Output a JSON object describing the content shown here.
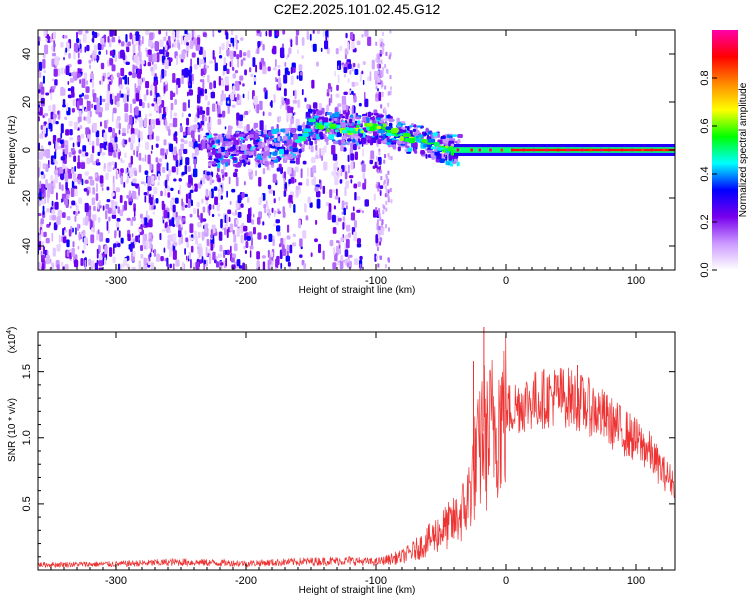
{
  "title": "C2E2.2025.101.02.45.G12",
  "chart_data": [
    {
      "type": "heatmap",
      "xlabel": "Height of straight line (km)",
      "ylabel": "Frequency (Hz)",
      "xlim": [
        -360,
        130
      ],
      "ylim": [
        -50,
        50
      ],
      "xticks": [
        -300,
        -200,
        -100,
        0,
        100
      ],
      "yticks": [
        -40,
        -20,
        0,
        20,
        40
      ],
      "colorbar": {
        "label": "Normalized spectral amplitude",
        "range": [
          0,
          1
        ],
        "ticks": [
          0.0,
          0.2,
          0.4,
          0.6,
          0.8
        ],
        "tick_labels": [
          "0.0",
          "0.2",
          "0.4",
          "0.6",
          "0.8"
        ],
        "colors": [
          "#ffffff",
          "#cc99ff",
          "#7700ee",
          "#0000ff",
          "#00ffff",
          "#00ff00",
          "#ffff00",
          "#ff8800",
          "#ff0000",
          "#ff00aa"
        ]
      },
      "ridge": [
        {
          "x": -220,
          "y": 0
        },
        {
          "x": -160,
          "y": 2
        },
        {
          "x": -150,
          "y": 11
        },
        {
          "x": -120,
          "y": 8
        },
        {
          "x": -100,
          "y": 10
        },
        {
          "x": -80,
          "y": 6
        },
        {
          "x": -60,
          "y": 3
        },
        {
          "x": -45,
          "y": 0
        },
        {
          "x": -20,
          "y": 0
        },
        {
          "x": 0,
          "y": 1
        },
        {
          "x": 130,
          "y": 0
        }
      ]
    },
    {
      "type": "line",
      "xlabel": "Height of straight line (km)",
      "ylabel": "SNR (10 * v/v)",
      "scale_label": "(x10",
      "scale_exponent": "4",
      "xlim": [
        -360,
        130
      ],
      "ylim": [
        0,
        18000
      ],
      "xticks": [
        -300,
        -200,
        -100,
        0,
        100
      ],
      "yticks": [
        5000,
        10000,
        15000
      ],
      "ytick_labels": [
        "0.5",
        "1.0",
        "1.5"
      ],
      "color": "#ee3333",
      "series": [
        {
          "x": [
            -360,
            -300,
            -250,
            -200,
            -150,
            -120,
            -100,
            -80,
            -70,
            -60,
            -50,
            -40,
            -35,
            -30,
            -25,
            -20,
            -18,
            -15,
            -12,
            -10,
            -5,
            0,
            10,
            20,
            30,
            40,
            50,
            60,
            70,
            80,
            90,
            100,
            110,
            120,
            130
          ],
          "y": [
            400,
            450,
            600,
            500,
            650,
            700,
            600,
            1000,
            1500,
            2200,
            3000,
            3600,
            4200,
            5000,
            7500,
            9000,
            11000,
            9500,
            10500,
            11000,
            11500,
            12000,
            12500,
            12800,
            13000,
            13200,
            13000,
            12500,
            12000,
            11200,
            10500,
            9800,
            9000,
            7500,
            6500
          ]
        }
      ],
      "spikes": [
        {
          "x": -25,
          "y": 15800
        },
        {
          "x": -17,
          "y": 18500
        },
        {
          "x": 55,
          "y": 15500
        }
      ]
    }
  ]
}
